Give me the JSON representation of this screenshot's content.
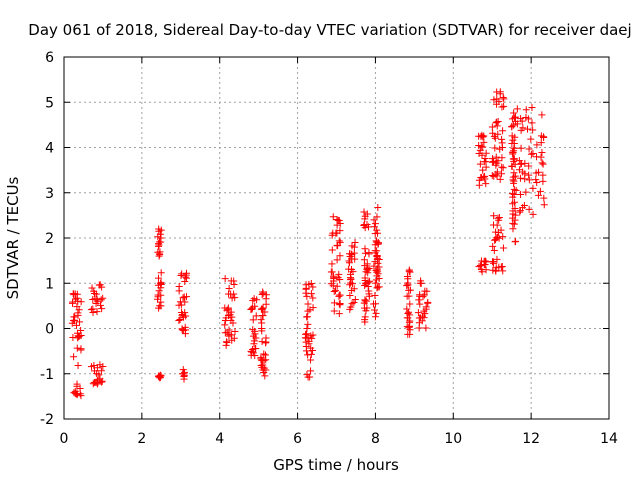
{
  "chart_data": {
    "type": "scatter",
    "title": "Day 061 of 2018, Sidereal Day-to-day VTEC variation (SDTVAR) for receiver daej",
    "xlabel": "GPS time / hours",
    "ylabel": "SDTVAR / TECUs",
    "xlim": [
      0,
      14
    ],
    "ylim": [
      -2,
      6
    ],
    "xticks": [
      0,
      2,
      4,
      6,
      8,
      10,
      12,
      14
    ],
    "yticks": [
      -2,
      -1,
      0,
      1,
      2,
      3,
      4,
      5,
      6
    ],
    "xtick_labels": [
      "0",
      "2",
      "4",
      "6",
      "8",
      "10",
      "12",
      "14"
    ],
    "ytick_labels": [
      "-2",
      "-1",
      "0",
      "1",
      "2",
      "3",
      "4",
      "5",
      "6"
    ],
    "grid": true,
    "marker": "plus",
    "marker_color": "#ff0000",
    "clusters": [
      {
        "x": [
          0.2,
          0.45
        ],
        "y": [
          -0.9,
          0.8
        ]
      },
      {
        "x": [
          0.25,
          0.45
        ],
        "y": [
          -1.5,
          -1.2
        ]
      },
      {
        "x": [
          0.7,
          1.0
        ],
        "y": [
          0.3,
          1.0
        ]
      },
      {
        "x": [
          0.7,
          1.0
        ],
        "y": [
          -1.4,
          -0.8
        ]
      },
      {
        "x": [
          2.4,
          2.5
        ],
        "y": [
          0.4,
          2.2
        ]
      },
      {
        "x": [
          2.4,
          2.5
        ],
        "y": [
          -1.1,
          -1.0
        ]
      },
      {
        "x": [
          2.95,
          3.15
        ],
        "y": [
          -0.2,
          1.3
        ]
      },
      {
        "x": [
          3.05,
          3.1
        ],
        "y": [
          -1.15,
          -0.9
        ]
      },
      {
        "x": [
          4.1,
          4.4
        ],
        "y": [
          -0.4,
          1.2
        ]
      },
      {
        "x": [
          4.8,
          4.95
        ],
        "y": [
          -0.6,
          0.7
        ]
      },
      {
        "x": [
          5.05,
          5.2
        ],
        "y": [
          -1.1,
          0.9
        ]
      },
      {
        "x": [
          6.2,
          6.4
        ],
        "y": [
          -1.1,
          1.0
        ]
      },
      {
        "x": [
          6.85,
          7.1
        ],
        "y": [
          0.3,
          2.5
        ]
      },
      {
        "x": [
          7.3,
          7.5
        ],
        "y": [
          0.4,
          1.9
        ]
      },
      {
        "x": [
          7.7,
          7.85
        ],
        "y": [
          0.1,
          2.6
        ]
      },
      {
        "x": [
          7.95,
          8.1
        ],
        "y": [
          0.1,
          2.7
        ]
      },
      {
        "x": [
          8.8,
          8.9
        ],
        "y": [
          -0.3,
          1.3
        ]
      },
      {
        "x": [
          9.1,
          9.35
        ],
        "y": [
          -0.05,
          1.1
        ]
      },
      {
        "x": [
          10.65,
          10.85
        ],
        "y": [
          1.2,
          1.5
        ]
      },
      {
        "x": [
          10.65,
          10.85
        ],
        "y": [
          3.0,
          4.3
        ]
      },
      {
        "x": [
          11.0,
          11.3
        ],
        "y": [
          1.2,
          2.5
        ]
      },
      {
        "x": [
          11.0,
          11.3
        ],
        "y": [
          3.2,
          5.3
        ]
      },
      {
        "x": [
          11.5,
          11.6
        ],
        "y": [
          1.9,
          4.8
        ]
      },
      {
        "x": [
          11.6,
          12.35
        ],
        "y": [
          2.5,
          4.9
        ]
      }
    ]
  }
}
